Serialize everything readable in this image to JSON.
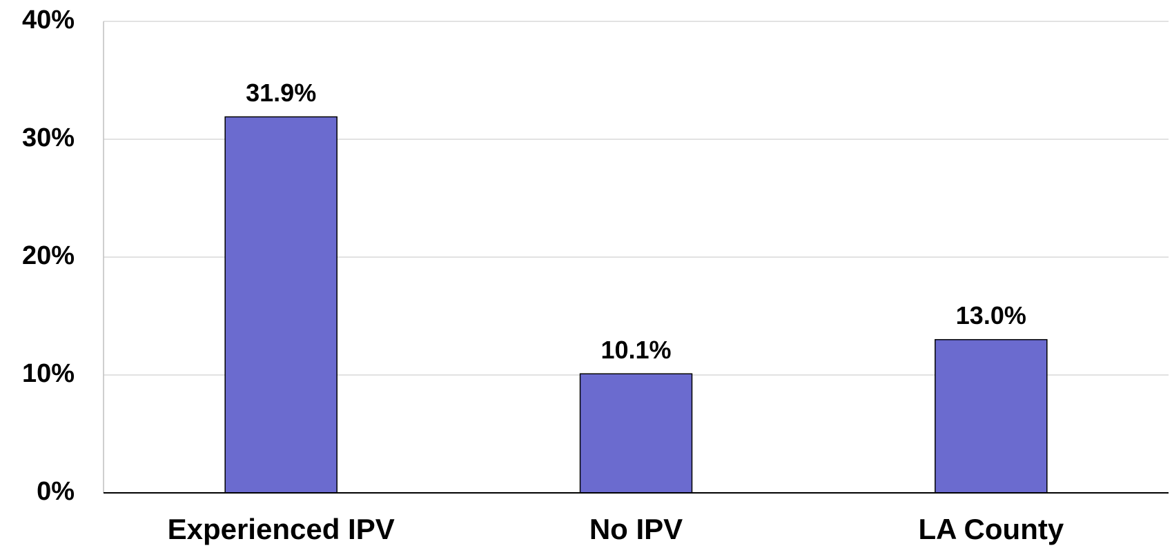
{
  "chart_data": {
    "type": "bar",
    "categories": [
      "Experienced IPV",
      "No IPV",
      "LA County"
    ],
    "values": [
      31.9,
      10.1,
      13.0
    ],
    "value_labels": [
      "31.9%",
      "10.1%",
      "13.0%"
    ],
    "color": "#6b6bcf",
    "ylim": [
      0,
      40
    ],
    "yticks": [
      {
        "value": 0,
        "label": "0%"
      },
      {
        "value": 10,
        "label": "10%"
      },
      {
        "value": 20,
        "label": "20%"
      },
      {
        "value": 30,
        "label": "30%"
      },
      {
        "value": 40,
        "label": "40%"
      }
    ],
    "grid": true
  }
}
